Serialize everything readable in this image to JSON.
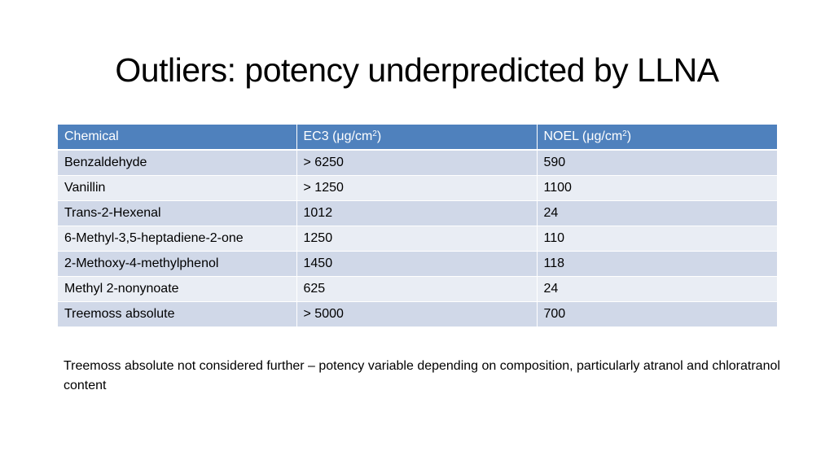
{
  "slide": {
    "title": "Outliers: potency underpredicted by LLNA"
  },
  "table": {
    "headers": {
      "chemical": "Chemical",
      "ec3_prefix": "EC3 (μg/cm",
      "ec3_sup": "2",
      "ec3_suffix": ")",
      "noel_prefix": "NOEL (μg/cm",
      "noel_sup": "2",
      "noel_suffix": ")"
    },
    "rows": [
      {
        "chemical": "Benzaldehyde",
        "ec3": "> 6250",
        "noel": "590"
      },
      {
        "chemical": "Vanillin",
        "ec3": "> 1250",
        "noel": "1100"
      },
      {
        "chemical": "Trans-2-Hexenal",
        "ec3": "1012",
        "noel": "24"
      },
      {
        "chemical": "6-Methyl-3,5-heptadiene-2-one",
        "ec3": "1250",
        "noel": "110"
      },
      {
        "chemical": "2-Methoxy-4-methylphenol",
        "ec3": "1450",
        "noel": "118"
      },
      {
        "chemical": "Methyl 2-nonynoate",
        "ec3": "625",
        "noel": "24"
      },
      {
        "chemical": "Treemoss absolute",
        "ec3": "> 5000",
        "noel": "700"
      }
    ]
  },
  "footnote": "Treemoss absolute not considered further – potency variable depending on composition, particularly atranol and chloratranol content",
  "colors": {
    "header_bg": "#4f81bd",
    "row_odd_bg": "#d0d8e8",
    "row_even_bg": "#e9edf4"
  }
}
